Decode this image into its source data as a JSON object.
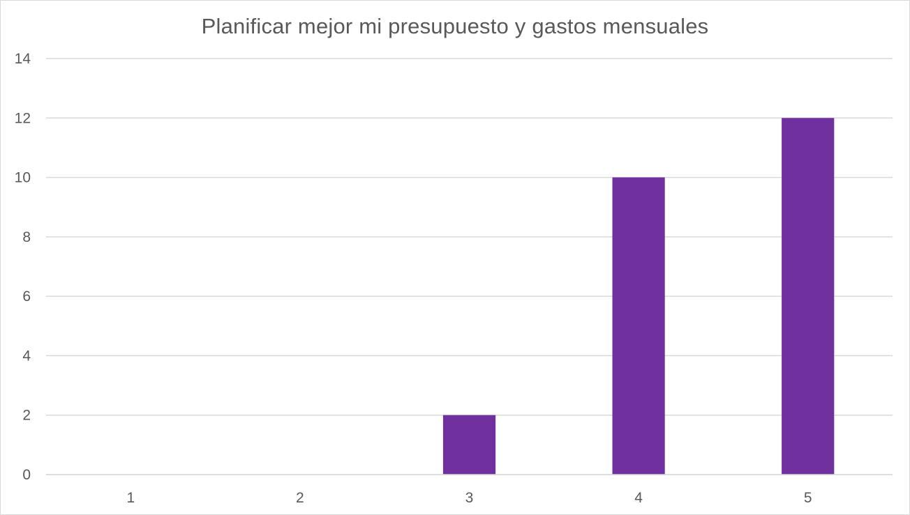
{
  "chart_data": {
    "type": "bar",
    "title": "Planificar mejor mi presupuesto y gastos mensuales",
    "categories": [
      "1",
      "2",
      "3",
      "4",
      "5"
    ],
    "values": [
      0,
      0,
      2,
      10,
      12
    ],
    "ylim": [
      0,
      14
    ],
    "yticks": [
      0,
      2,
      4,
      6,
      8,
      10,
      12,
      14
    ],
    "xlabel": "",
    "ylabel": "",
    "grid": true,
    "legend": "none",
    "colors": {
      "bar": "#7030a0",
      "grid": "#d9d9d9",
      "text": "#595959",
      "border": "#d9d9d9"
    }
  }
}
